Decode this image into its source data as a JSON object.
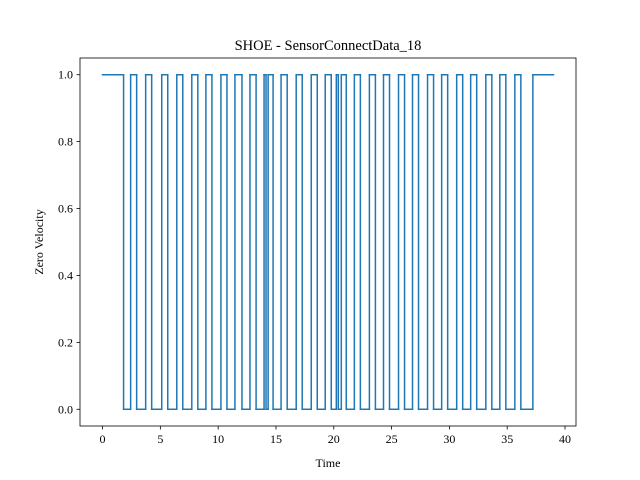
{
  "chart_data": {
    "type": "line",
    "drawstyle": "steps-post",
    "title": "SHOE - SensorConnectData_18",
    "xlabel": "Time",
    "ylabel": "Zero Velocity",
    "x": [
      0,
      1.82,
      2.43,
      2.95,
      3.73,
      4.25,
      5.12,
      5.64,
      6.42,
      6.94,
      7.72,
      8.24,
      8.94,
      9.46,
      10.24,
      10.76,
      11.45,
      12.06,
      12.75,
      13.28,
      13.97,
      14.14,
      14.32,
      14.75,
      15.44,
      15.97,
      16.75,
      17.27,
      18.05,
      18.57,
      19.26,
      19.78,
      20.22,
      20.39,
      20.65,
      21.08,
      21.78,
      22.3,
      23.08,
      23.6,
      24.3,
      24.82,
      25.6,
      26.12,
      26.81,
      27.33,
      28.11,
      28.63,
      29.33,
      29.85,
      30.63,
      31.15,
      31.84,
      32.36,
      33.15,
      33.67,
      34.36,
      34.88,
      35.66,
      36.18,
      37.22,
      39.0
    ],
    "values": [
      1,
      0,
      1,
      0,
      1,
      0,
      1,
      0,
      1,
      0,
      1,
      0,
      1,
      0,
      1,
      0,
      1,
      0,
      1,
      0,
      1,
      0,
      1,
      0,
      1,
      0,
      1,
      0,
      1,
      0,
      1,
      0,
      1,
      0,
      1,
      0,
      1,
      0,
      1,
      0,
      1,
      0,
      1,
      0,
      1,
      0,
      1,
      0,
      1,
      0,
      1,
      0,
      1,
      0,
      1,
      0,
      1,
      0,
      1,
      0,
      1,
      1
    ],
    "color": "#1f77b4",
    "xlim": [
      -1.95,
      40.95
    ],
    "xticks": [
      0,
      5,
      10,
      15,
      20,
      25,
      30,
      35,
      40
    ],
    "ylim": [
      -0.05,
      1.05
    ],
    "yticks": [
      {
        "value": 0,
        "label": "0.0"
      },
      0.2,
      0.4,
      0.6,
      0.8,
      {
        "value": 1,
        "label": "1.0"
      }
    ],
    "grid": false
  }
}
